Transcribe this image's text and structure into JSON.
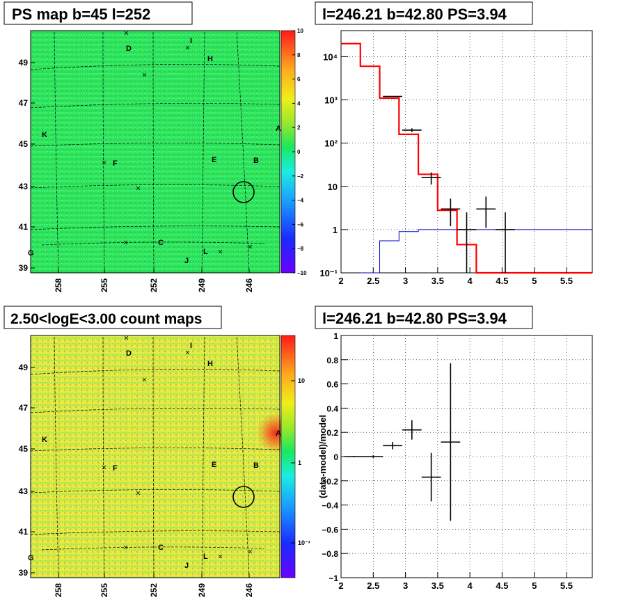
{
  "panels": {
    "ps_map_title": "PS map b=45 l=252",
    "spectrum_title": "l=246.21 b=42.80 PS=3.94",
    "count_map_title": "2.50<logE<3.00 count maps",
    "residual_title": "l=246.21 b=42.80 PS=3.94"
  },
  "colors": {
    "data": "#000000",
    "model_total": "#ff0000",
    "model_background": "#0000cc",
    "ps_map_base": "#22ee55",
    "count_map_base": "#ddee44",
    "hotspot": "#ee3322"
  },
  "sky_maps": {
    "lon_ticks": [
      "258",
      "255",
      "252",
      "249",
      "246"
    ],
    "lat_ticks": [
      "49",
      "47",
      "45",
      "43",
      "41",
      "39"
    ],
    "source_labels": [
      "A",
      "B",
      "D",
      "E",
      "F",
      "G",
      "H",
      "I",
      "J",
      "K",
      "L"
    ],
    "ps_map_colorbar": {
      "range": [
        -10,
        10
      ],
      "tick_labels": [
        "10",
        "8",
        "6",
        "4",
        "2",
        "0",
        "−2",
        "−4",
        "−6",
        "−8",
        "−10"
      ]
    },
    "count_map_colorbar": {
      "scale": "log",
      "tick_labels": [
        "10",
        "1",
        "10⁻¹"
      ]
    },
    "selected_source_marker": "circle"
  },
  "chart_data": [
    {
      "type": "line",
      "panel": "spectrum",
      "title": "l=246.21 b=42.80 PS=3.94",
      "xlabel": "",
      "ylabel": "",
      "xlim": [
        2,
        5.9
      ],
      "ylim": [
        0.1,
        40000
      ],
      "yscale": "log",
      "grid": true,
      "x_tick_labels": [
        "2",
        "2.5",
        "3",
        "3.5",
        "4",
        "4.5",
        "5",
        "5.5"
      ],
      "y_tick_labels": [
        "10⁻¹",
        "1",
        "10",
        "10²",
        "10³",
        "10⁴"
      ],
      "series": [
        {
          "role": "data",
          "x": [
            3.1,
            3.4,
            3.7,
            3.95,
            4.25,
            4.55
          ],
          "xerr": 0.15,
          "y": [
            200,
            16,
            3,
            1,
            3,
            1
          ],
          "yerr_low": [
            20,
            5,
            1.8,
            0.9,
            1.9,
            0.9
          ],
          "yerr_high": [
            20,
            5,
            2.2,
            1.5,
            2.8,
            1.5
          ],
          "x_extra": [
            2.8
          ],
          "y_extra": [
            1200
          ]
        },
        {
          "role": "model_total",
          "step_x": [
            2,
            2.3,
            2.6,
            2.9,
            3.2,
            3.5,
            3.8,
            4.1,
            4.4,
            5.9
          ],
          "step_y": [
            20000,
            6000,
            1100,
            160,
            19,
            2.8,
            0.45,
            0.1,
            0.1
          ]
        },
        {
          "role": "model_background",
          "step_x": [
            2.3,
            2.6,
            2.9,
            3.2,
            3.5,
            5.9
          ],
          "step_y": [
            0.1,
            0.55,
            0.9,
            1,
            1
          ]
        }
      ]
    },
    {
      "type": "scatter",
      "panel": "residual",
      "title": "l=246.21 b=42.80 PS=3.94",
      "xlabel": "",
      "ylabel": "(data-model)/model",
      "xlim": [
        2,
        5.9
      ],
      "ylim": [
        -1,
        1
      ],
      "grid": true,
      "x_tick_labels": [
        "2",
        "2.5",
        "3",
        "3.5",
        "4",
        "4.5",
        "5",
        "5.5"
      ],
      "y_tick_labels": [
        "1",
        "0.8",
        "0.6",
        "0.4",
        "0.2",
        "0",
        "−0.2",
        "−0.4",
        "−0.6",
        "−0.8",
        "−1"
      ],
      "x": [
        2.2,
        2.5,
        2.8,
        3.1,
        3.4,
        3.7
      ],
      "xerr": 0.15,
      "y": [
        0.0,
        0.0,
        0.09,
        0.22,
        -0.17,
        0.12
      ],
      "yerr_low": [
        0.005,
        0.01,
        0.03,
        0.08,
        0.2,
        0.65
      ],
      "yerr_high": [
        0.005,
        0.01,
        0.03,
        0.08,
        0.2,
        0.65
      ]
    }
  ]
}
